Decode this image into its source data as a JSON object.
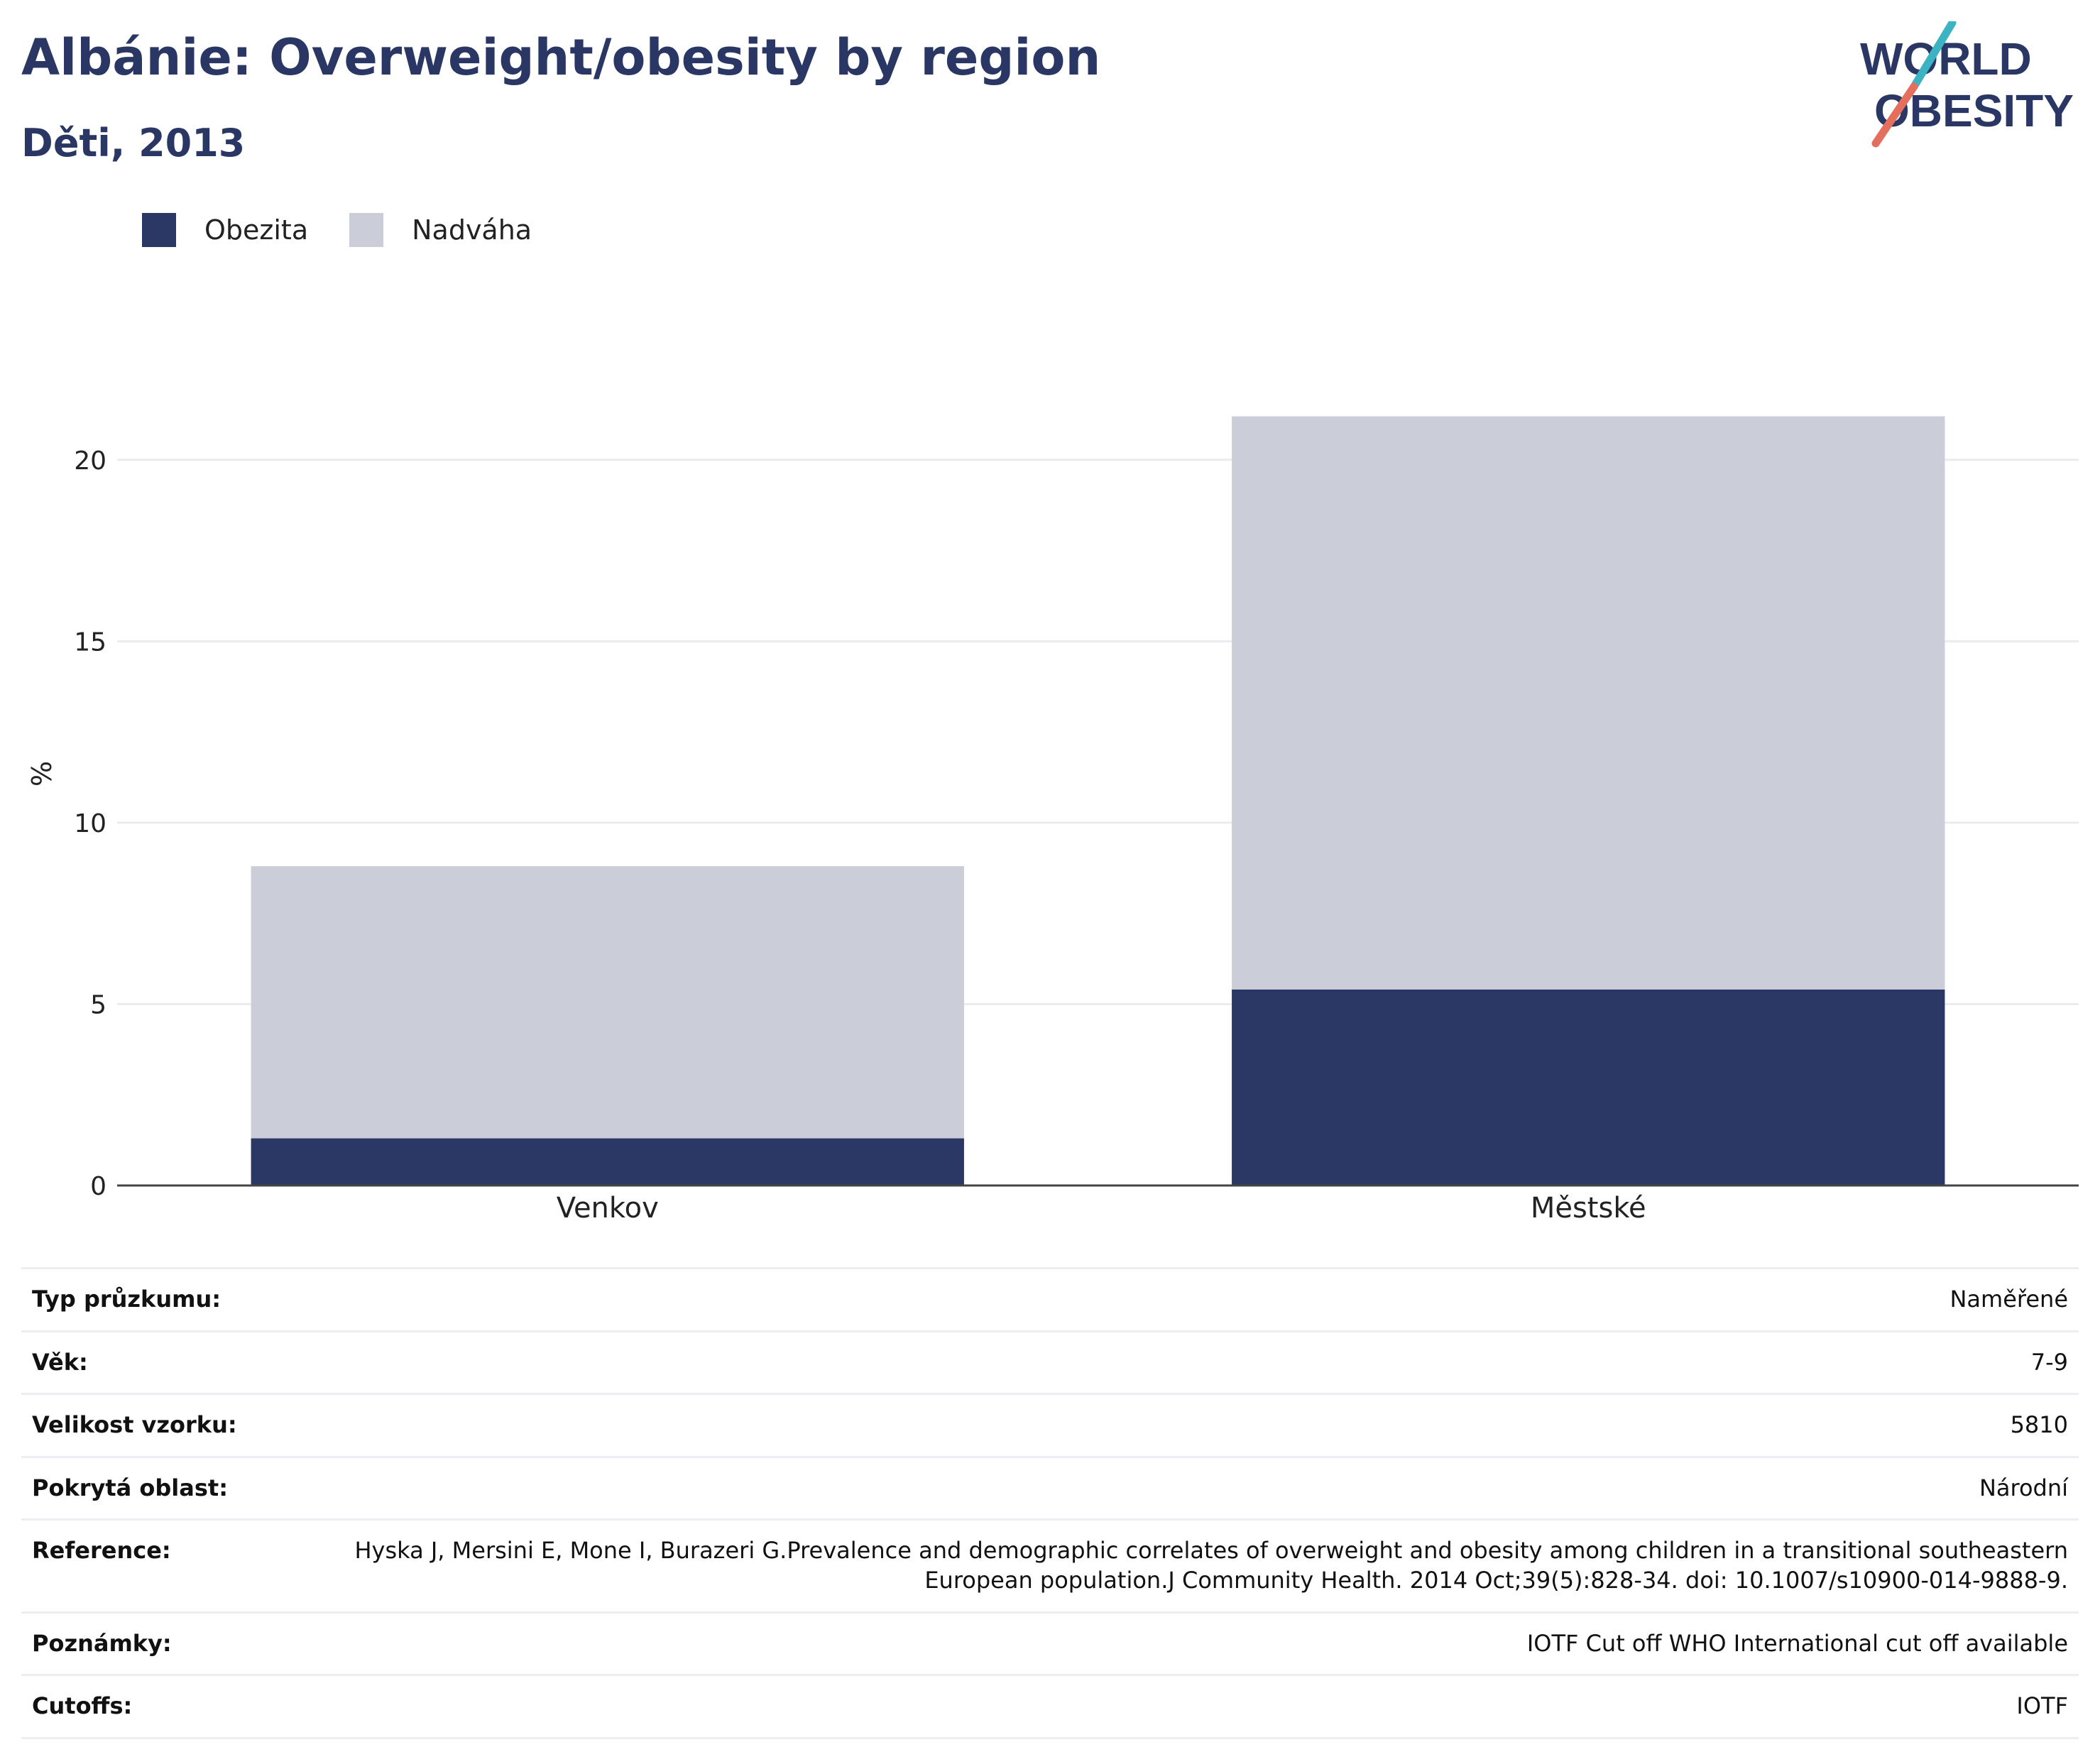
{
  "header": {
    "title": "Albánie: Overweight/obesity by region",
    "subtitle": "Děti, 2013"
  },
  "logo": {
    "line1": "WORLD",
    "line2": "OBESITY"
  },
  "colors": {
    "title": "#2a3764",
    "obesity": "#2b3764",
    "overweight": "#cbcdd8",
    "slash_teal": "#3bb3c3",
    "slash_red": "#e46f5c"
  },
  "chart_data": {
    "type": "bar",
    "stacked": true,
    "categories": [
      "Venkov",
      "Městské"
    ],
    "series": [
      {
        "name": "Obezita",
        "values": [
          1.3,
          5.4
        ],
        "color": "#2b3764"
      },
      {
        "name": "Nadváha",
        "values": [
          7.5,
          15.8
        ],
        "color": "#cbcdd8"
      }
    ],
    "ylabel": "%",
    "ylim": [
      0,
      22.5
    ],
    "yticks": [
      0,
      5,
      10,
      15,
      20
    ],
    "grid": true,
    "legend": "top-left"
  },
  "meta": [
    {
      "key": "Typ průzkumu:",
      "value": "Naměřené"
    },
    {
      "key": "Věk:",
      "value": "7-9"
    },
    {
      "key": "Velikost vzorku:",
      "value": "5810"
    },
    {
      "key": "Pokrytá oblast:",
      "value": "Národní"
    },
    {
      "key": "Reference:",
      "value": "Hyska J, Mersini E, Mone I, Burazeri G.Prevalence and demographic correlates of overweight and obesity among children in a transitional southeastern European population.J Community Health. 2014 Oct;39(5):828-34. doi: 10.1007/s10900-014-9888-9."
    },
    {
      "key": "Poznámky:",
      "value": "IOTF Cut off WHO International cut off available"
    },
    {
      "key": "Cutoffs:",
      "value": "IOTF"
    }
  ]
}
